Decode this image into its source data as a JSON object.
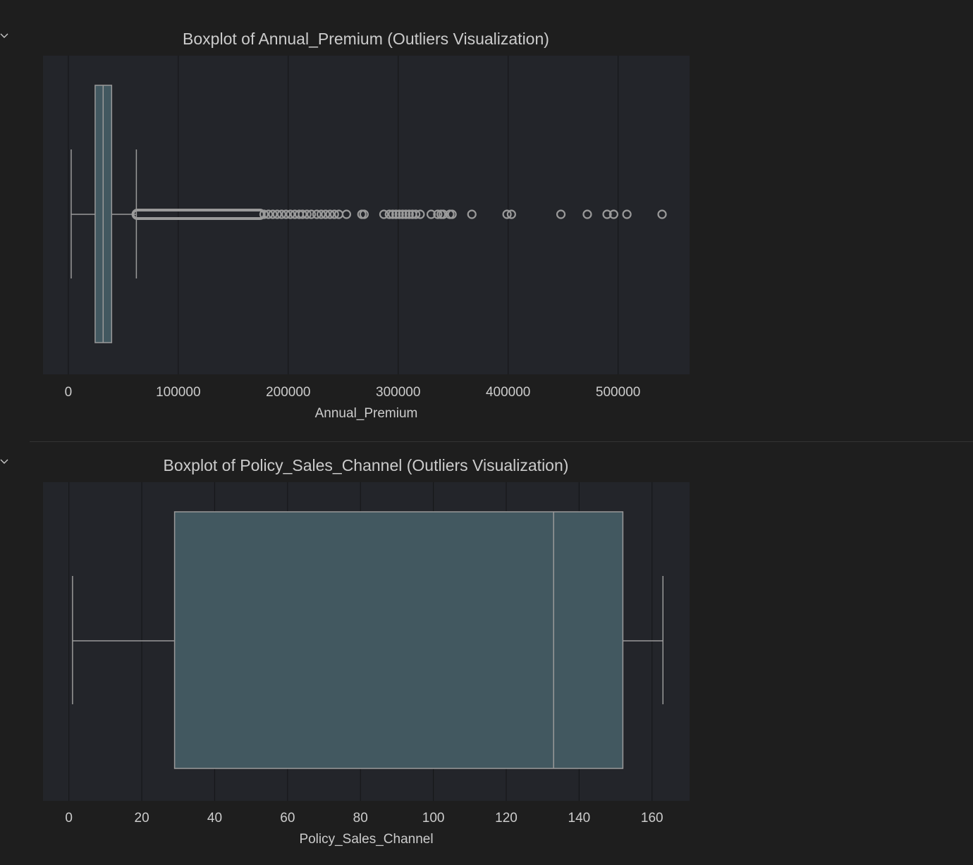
{
  "colors": {
    "page_bg": "#1e1e1e",
    "plot_bg": "#23252a",
    "grid": "#17181b",
    "box_fill": "#425860",
    "line": "#9a9a9a",
    "text": "#cccccc",
    "toggle": "#c8c8c8"
  },
  "cells": [
    {
      "toggle_icon": "chevron-down-icon"
    },
    {
      "toggle_icon": "chevron-down-icon"
    }
  ],
  "chart_data": [
    {
      "type": "boxplot",
      "orientation": "horizontal",
      "title": "Boxplot of Annual_Premium (Outliers Visualization)",
      "xlabel": "Annual_Premium",
      "ylabel": "",
      "xlim": [
        -23000,
        565000
      ],
      "xticks": [
        0,
        100000,
        200000,
        300000,
        400000,
        500000
      ],
      "xtick_labels": [
        "0",
        "100000",
        "200000",
        "300000",
        "400000",
        "500000"
      ],
      "grid": true,
      "box": {
        "whisker_low": 2630,
        "q1": 24400,
        "median": 31700,
        "q3": 39400,
        "whisker_high": 61900
      },
      "outlier_dense_range": [
        62000,
        175000
      ],
      "outliers": [
        178000,
        182000,
        186000,
        190000,
        194000,
        198000,
        202000,
        206000,
        210000,
        213000,
        217000,
        221000,
        226000,
        230000,
        234000,
        238000,
        242000,
        246000,
        253000,
        267000,
        269000,
        287000,
        292000,
        295000,
        298000,
        301000,
        304000,
        307000,
        310000,
        313000,
        316000,
        320000,
        330000,
        336000,
        339000,
        341000,
        347000,
        349000,
        367000,
        399000,
        403000,
        448000,
        472000,
        490000,
        496000,
        508000,
        540000
      ]
    },
    {
      "type": "boxplot",
      "orientation": "horizontal",
      "title": "Boxplot of Policy_Sales_Channel (Outliers Visualization)",
      "xlabel": "Policy_Sales_Channel",
      "ylabel": "",
      "xlim": [
        -7.1,
        170.3
      ],
      "xticks": [
        0,
        20,
        40,
        60,
        80,
        100,
        120,
        140,
        160
      ],
      "xtick_labels": [
        "0",
        "20",
        "40",
        "60",
        "80",
        "100",
        "120",
        "140",
        "160"
      ],
      "grid": true,
      "box": {
        "whisker_low": 1,
        "q1": 29,
        "median": 133,
        "q3": 152,
        "whisker_high": 163
      },
      "outlier_dense_range": null,
      "outliers": []
    }
  ]
}
